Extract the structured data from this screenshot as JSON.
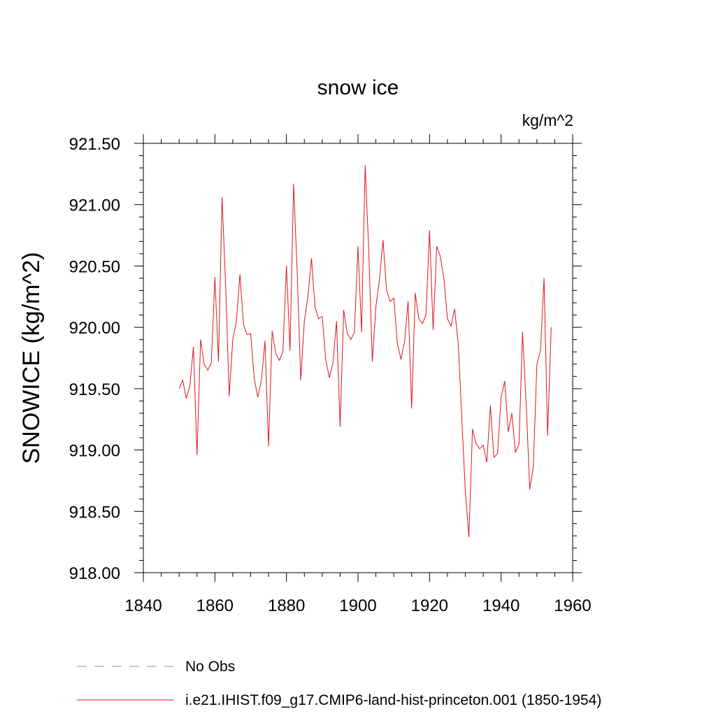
{
  "chart_data": {
    "type": "line",
    "title": "snow ice",
    "units_label": "kg/m^2",
    "ylabel": "SNOWICE  (kg/m^2)",
    "xlabel": "",
    "xlim": [
      1840,
      1960
    ],
    "ylim": [
      918.0,
      921.5
    ],
    "x_ticks": [
      1840,
      1860,
      1880,
      1900,
      1920,
      1940,
      1960
    ],
    "y_ticks": [
      918.0,
      918.5,
      919.0,
      919.5,
      920.0,
      920.5,
      921.0,
      921.5
    ],
    "x_tick_labels": [
      "1840",
      "1860",
      "1880",
      "1900",
      "1920",
      "1940",
      "1960"
    ],
    "y_tick_labels": [
      "918.00",
      "918.50",
      "919.00",
      "919.50",
      "920.00",
      "920.50",
      "921.00",
      "921.50"
    ],
    "grid": false,
    "legend_position": "bottom",
    "series": [
      {
        "name": "No Obs",
        "color": "#9386b8",
        "style": "dashed",
        "x": [],
        "values": []
      },
      {
        "name": "i.e21.IHIST.f09_g17.CMIP6-land-hist-princeton.001 (1850-1954)",
        "color": "#e0141b",
        "style": "solid",
        "x": [
          1850,
          1851,
          1852,
          1853,
          1854,
          1855,
          1856,
          1857,
          1858,
          1859,
          1860,
          1861,
          1862,
          1863,
          1864,
          1865,
          1866,
          1867,
          1868,
          1869,
          1870,
          1871,
          1872,
          1873,
          1874,
          1875,
          1876,
          1877,
          1878,
          1879,
          1880,
          1881,
          1882,
          1883,
          1884,
          1885,
          1886,
          1887,
          1888,
          1889,
          1890,
          1891,
          1892,
          1893,
          1894,
          1895,
          1896,
          1897,
          1898,
          1899,
          1900,
          1901,
          1902,
          1903,
          1904,
          1905,
          1906,
          1907,
          1908,
          1909,
          1910,
          1911,
          1912,
          1913,
          1914,
          1915,
          1916,
          1917,
          1918,
          1919,
          1920,
          1921,
          1922,
          1923,
          1924,
          1925,
          1926,
          1927,
          1928,
          1929,
          1930,
          1931,
          1932,
          1933,
          1934,
          1935,
          1936,
          1937,
          1938,
          1939,
          1940,
          1941,
          1942,
          1943,
          1944,
          1945,
          1946,
          1947,
          1948,
          1949,
          1950,
          1951,
          1952,
          1953,
          1954
        ],
        "values": [
          919.5,
          919.57,
          919.42,
          919.52,
          919.84,
          918.96,
          919.9,
          919.7,
          919.65,
          919.71,
          920.41,
          919.72,
          921.06,
          920.35,
          919.44,
          919.9,
          920.05,
          920.43,
          920.02,
          919.94,
          919.95,
          919.58,
          919.43,
          919.57,
          919.89,
          919.03,
          919.97,
          919.79,
          919.73,
          919.8,
          920.5,
          919.81,
          921.17,
          920.45,
          919.57,
          920.05,
          920.25,
          920.56,
          920.16,
          920.07,
          920.09,
          919.73,
          919.59,
          919.71,
          920.05,
          919.19,
          920.14,
          919.95,
          919.9,
          919.96,
          920.66,
          919.96,
          921.32,
          920.63,
          919.72,
          920.17,
          920.39,
          920.71,
          920.3,
          920.21,
          920.24,
          919.87,
          919.74,
          919.88,
          920.21,
          919.34,
          920.28,
          920.07,
          920.03,
          920.1,
          920.79,
          919.98,
          920.66,
          920.58,
          920.4,
          920.07,
          920.01,
          920.15,
          919.87,
          919.27,
          918.66,
          918.29,
          919.17,
          919.05,
          919.01,
          919.04,
          918.9,
          919.36,
          918.94,
          918.97,
          919.43,
          919.56,
          919.15,
          919.3,
          918.98,
          919.05,
          919.96,
          919.38,
          918.68,
          918.86,
          919.7,
          919.81,
          920.4,
          919.12,
          920.0
        ]
      }
    ]
  }
}
